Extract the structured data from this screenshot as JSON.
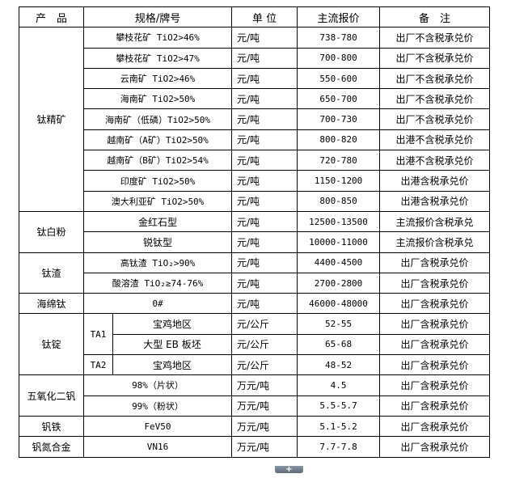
{
  "header": {
    "product": "产　品",
    "spec": "规格/牌号",
    "unit": "单 位",
    "price": "主流报价",
    "note": "备　注"
  },
  "groups": {
    "titanium_concentrate": "钛精矿",
    "titanium_dioxide": "钛白粉",
    "titanium_slag": "钛渣",
    "sponge_titanium": "海绵钛",
    "titanium_ingot": "钛锭",
    "vanadium_pentoxide": "五氧化二钒",
    "ferrovanadium": "钒铁",
    "vanadium_nitrogen": "钒氮合金"
  },
  "ingot_grades": {
    "ta1": "TA1",
    "ta2": "TA2"
  },
  "rows": [
    {
      "spec": "攀枝花矿 TiO2>46%",
      "unit": "元/吨",
      "price": "738-780",
      "note": "出厂不含税承兑价"
    },
    {
      "spec": "攀枝花矿 TiO2>47%",
      "unit": "元/吨",
      "price": "700-800",
      "note": "出厂不含税承兑价"
    },
    {
      "spec": "云南矿 TiO2>46%",
      "unit": "元/吨",
      "price": "550-600",
      "note": "出厂不含税承兑价"
    },
    {
      "spec": "海南矿 TiO2>50%",
      "unit": "元/吨",
      "price": "650-700",
      "note": "出厂不含税承兑价"
    },
    {
      "spec": "海南矿（低磷）TiO2>50%",
      "unit": "元/吨",
      "price": "700-730",
      "note": "出厂不含税承兑价"
    },
    {
      "spec": "越南矿（A矿）TiO2>50%",
      "unit": "元/吨",
      "price": "800-820",
      "note": "出港不含税承兑价"
    },
    {
      "spec": "越南矿（B矿）TiO2>54%",
      "unit": "元/吨",
      "price": "720-780",
      "note": "出港不含税承兑价"
    },
    {
      "spec": "印度矿 TiO2>50%",
      "unit": "元/吨",
      "price": "1150-1200",
      "note": "出港含税承兑价"
    },
    {
      "spec": "澳大利亚矿 TiO2>50%",
      "unit": "元/吨",
      "price": "800-850",
      "note": "出港含税承兑价"
    },
    {
      "spec": "金红石型",
      "unit": "元/吨",
      "price": "12500-13500",
      "note": "主流报价含税承兑"
    },
    {
      "spec": "锐钛型",
      "unit": "元/吨",
      "price": "10000-11000",
      "note": "主流报价含税承兑"
    },
    {
      "spec": "高钛渣 TiO₂>90%",
      "unit": "元/吨",
      "price": "4400-4500",
      "note": "出厂含税承兑价"
    },
    {
      "spec": "酸溶渣 TiO₂≥74-76%",
      "unit": "元/吨",
      "price": "2700-2800",
      "note": "出厂含税承兑价"
    },
    {
      "spec": "0#",
      "unit": "元/吨",
      "price": "46000-48000",
      "note": "出厂含税承兑价"
    },
    {
      "spec": "宝鸡地区",
      "unit": "元/公斤",
      "price": "52-55",
      "note": "出厂含税承兑价"
    },
    {
      "spec": "大型 EB 板坯",
      "unit": "元/公斤",
      "price": "65-68",
      "note": "出厂含税承兑价"
    },
    {
      "spec": "宝鸡地区",
      "unit": "元/公斤",
      "price": "48-52",
      "note": "出厂含税承兑价"
    },
    {
      "spec": "98%（片状）",
      "unit": "万元/吨",
      "price": "4.5",
      "note": "出厂含税承兑价"
    },
    {
      "spec": "99%（粉状）",
      "unit": "万元/吨",
      "price": "5.5-5.7",
      "note": "出厂含税承兑价"
    },
    {
      "spec": "FeV50",
      "unit": "万元/吨",
      "price": "5.1-5.2",
      "note": "出厂含税承兑价"
    },
    {
      "spec": "VN16",
      "unit": "万元/吨",
      "price": "7.7-7.8",
      "note": "出厂含税承兑价"
    }
  ],
  "expand_button": "+"
}
